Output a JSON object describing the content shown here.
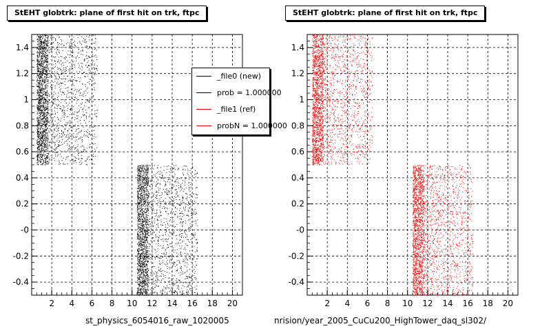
{
  "titles": {
    "left": "StEHT globtrk: plane of first hit on trk, ftpc",
    "right": "StEHT globtrk: plane of first hit on trk, ftpc"
  },
  "footers": {
    "left": "st_physics_6054016_raw_1020005",
    "right": "nrision/year_2005_CuCu200_HighTower_daq_sl302/"
  },
  "legend": {
    "entries": [
      {
        "label": "_file0 (new)",
        "color": "#000000"
      },
      {
        "label": "prob = 1.000000",
        "color": "#000000"
      },
      {
        "label": "_file1 (ref)",
        "color": "#ff0000"
      },
      {
        "label": "probN = 1.000000",
        "color": "#ff0000"
      }
    ]
  },
  "chart_data": [
    {
      "type": "scatter",
      "title": "StEHT globtrk: plane of first hit on trk, ftpc",
      "xlabel": "st_physics_6054016_raw_1020005",
      "ylabel": "",
      "xlim": [
        0,
        21
      ],
      "ylim": [
        -0.5,
        1.5
      ],
      "xticks": [
        "2",
        "4",
        "6",
        "8",
        "10",
        "12",
        "14",
        "16",
        "18",
        "20"
      ],
      "yticks": [
        "-0.4",
        "-0.2",
        "-0",
        "0.2",
        "0.4",
        "0.6",
        "0.8",
        "1",
        "1.2",
        "1.4"
      ],
      "grid": true,
      "marker_color": "#000000",
      "clusters": [
        {
          "x_range": [
            0.5,
            6.5
          ],
          "y_range": [
            0.5,
            1.5
          ],
          "dense_x_until": 1.6
        },
        {
          "x_range": [
            10.5,
            16.5
          ],
          "y_range": [
            -0.5,
            0.5
          ],
          "dense_x_until": 11.6
        }
      ]
    },
    {
      "type": "scatter",
      "title": "StEHT globtrk: plane of first hit on trk, ftpc",
      "xlabel": "nrision/year_2005_CuCu200_HighTower_daq_sl302/",
      "ylabel": "",
      "xlim": [
        0,
        21
      ],
      "ylim": [
        -0.5,
        1.5
      ],
      "xticks": [
        "2",
        "4",
        "6",
        "8",
        "10",
        "12",
        "14",
        "16",
        "18",
        "20"
      ],
      "yticks": [
        "-0.4",
        "-0.2",
        "-0",
        "0.2",
        "0.4",
        "0.6",
        "0.8",
        "1",
        "1.2",
        "1.4"
      ],
      "grid": true,
      "marker_color": "#ff0000",
      "clusters": [
        {
          "x_range": [
            0.5,
            6.5
          ],
          "y_range": [
            0.5,
            1.5
          ],
          "dense_x_until": 1.6
        },
        {
          "x_range": [
            10.5,
            16.5
          ],
          "y_range": [
            -0.5,
            0.5
          ],
          "dense_x_until": 11.6
        }
      ]
    }
  ]
}
